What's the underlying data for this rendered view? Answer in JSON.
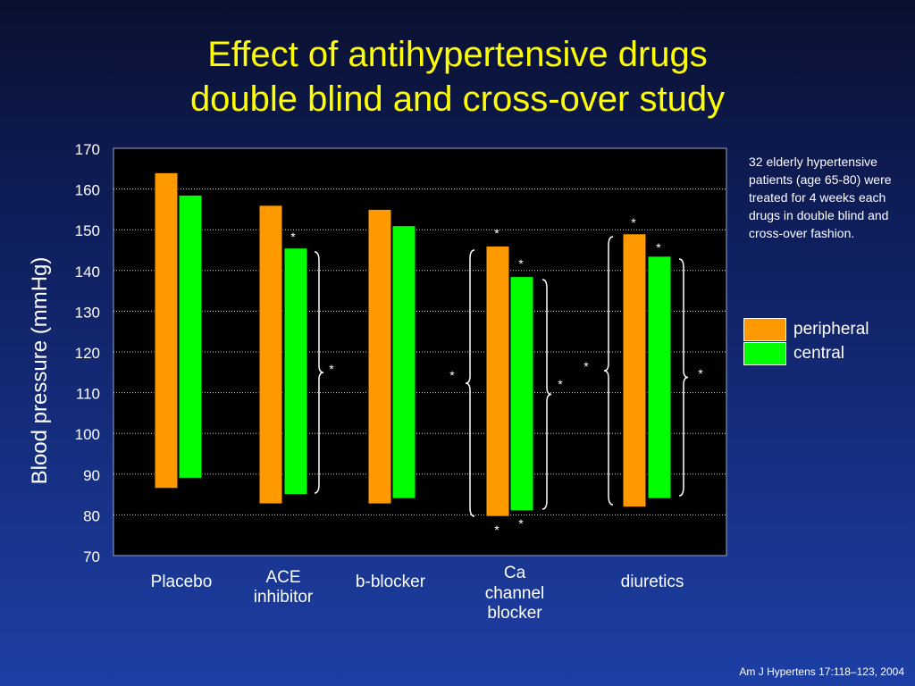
{
  "title_line1": "Effect of antihypertensive drugs",
  "title_line2": "double blind and cross-over study",
  "note": "32 elderly hypertensive patients (age 65-80) were treated for 4 weeks each drugs in double blind and cross-over fashion.",
  "source": "Am J Hypertens 17:118–123, 2004",
  "colors": {
    "peripheral": "#ff9900",
    "central": "#00ff00",
    "plot_bg": "#000000",
    "title": "#ffff00"
  },
  "chart_data": {
    "type": "bar",
    "subtype": "floating range bars",
    "categories": [
      [
        "Placebo"
      ],
      [
        "ACE",
        "inhibitor"
      ],
      [
        "b-blocker"
      ],
      [
        "Ca",
        "channel",
        "blocker"
      ],
      [
        "diuretics"
      ]
    ],
    "ylabel": "Blood pressure  (mmHg)",
    "xlabel": "",
    "ylim": [
      70,
      170
    ],
    "yticks": [
      70,
      80,
      90,
      100,
      110,
      120,
      130,
      140,
      150,
      160,
      170
    ],
    "grid": "horizontal dotted",
    "legend_placement": "right",
    "series": [
      {
        "name": "peripheral",
        "color": "#ff9900",
        "low": [
          86.5,
          82.7,
          82.7,
          79.6,
          81.9
        ],
        "high": [
          164.0,
          156.0,
          155.0,
          146.0,
          149.0
        ]
      },
      {
        "name": "central",
        "color": "#00ff00",
        "low": [
          89.0,
          85.0,
          84.0,
          81.0,
          84.0
        ],
        "high": [
          158.5,
          145.5,
          151.0,
          138.5,
          143.5
        ]
      }
    ],
    "significance_marker": "*"
  }
}
